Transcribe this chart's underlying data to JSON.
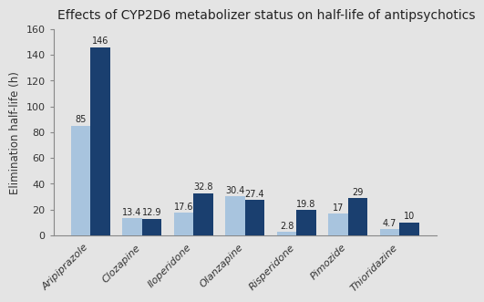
{
  "title": "Effects of CYP2D6 metabolizer status on half-life of antipsychotics",
  "ylabel": "Elimination half-life (h)",
  "categories": [
    "Aripiprazole",
    "Clozapine",
    "Iloperidone",
    "Olanzapine",
    "Risperidone",
    "Pimozide",
    "Thioridazine"
  ],
  "extensive_values": [
    85,
    13.4,
    17.6,
    30.4,
    2.8,
    17,
    4.7
  ],
  "poor_values": [
    146,
    12.9,
    32.8,
    27.4,
    19.8,
    29,
    10
  ],
  "extensive_color": "#a8c4de",
  "poor_color": "#1a3f6f",
  "ylim": [
    0,
    160
  ],
  "yticks": [
    0,
    20,
    40,
    60,
    80,
    100,
    120,
    140,
    160
  ],
  "background_color": "#e4e4e4",
  "plot_bg_color": "#e4e4e4",
  "title_fontsize": 10,
  "label_fontsize": 8.5,
  "tick_fontsize": 8,
  "bar_width": 0.38,
  "value_fontsize": 7
}
